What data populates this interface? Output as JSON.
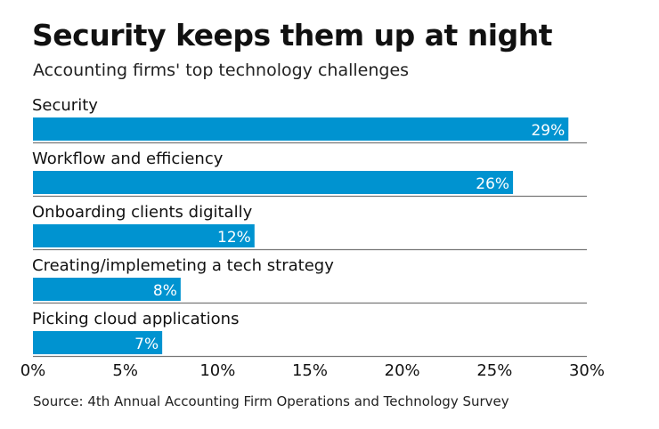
{
  "chart_data": {
    "type": "bar",
    "orientation": "horizontal",
    "title": "Security keeps them up at night",
    "subtitle": "Accounting firms' top technology challenges",
    "categories": [
      "Security",
      "Workflow and efficiency",
      "Onboarding clients digitally",
      "Creating/implemeting a tech strategy",
      "Picking cloud applications"
    ],
    "values": [
      29,
      26,
      12,
      8,
      7
    ],
    "value_labels": [
      "29%",
      "26%",
      "12%",
      "8%",
      "7%"
    ],
    "xlim": [
      0,
      30
    ],
    "xticks": [
      0,
      5,
      10,
      15,
      20,
      25,
      30
    ],
    "xtick_labels": [
      "0%",
      "5%",
      "10%",
      "15%",
      "20%",
      "25%",
      "30%"
    ],
    "grid": false,
    "bar_color": "#0093d0",
    "source": "Source: 4th Annual Accounting Firm Operations and Technology Survey"
  }
}
